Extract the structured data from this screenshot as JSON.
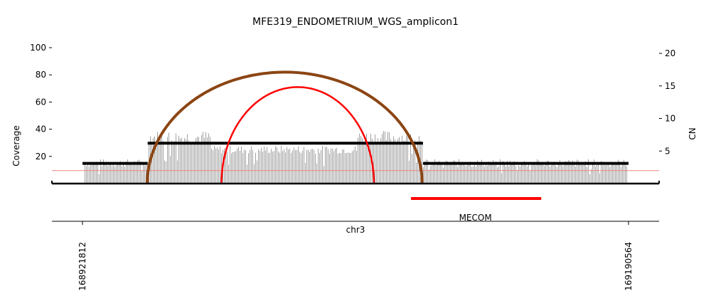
{
  "chart_data": {
    "type": "line",
    "title": "MFE319_ENDOMETRIUM_WGS_amplicon1",
    "xlabel": "chr3",
    "ylabel_left": "Coverage",
    "ylabel_right": "CN",
    "xlim": [
      168921812,
      169190564
    ],
    "x_ticks": [
      "168921812",
      "169190564"
    ],
    "ylim_left": [
      0,
      100
    ],
    "y_ticks_left": [
      20,
      40,
      60,
      80,
      100
    ],
    "ylim_right": [
      0,
      22
    ],
    "y_ticks_right": [
      5,
      10,
      15,
      20
    ],
    "grid": false,
    "cn_threshold": 2,
    "copy_number_segments": [
      {
        "x_start": 168921812,
        "x_end": 168953900,
        "cn": 3.1
      },
      {
        "x_start": 168953900,
        "x_end": 169089400,
        "cn": 6.2
      },
      {
        "x_start": 169089400,
        "x_end": 169190564,
        "cn": 3.1
      }
    ],
    "coverage_sample": {
      "x_start": 168923000,
      "x_end": 169190000,
      "segments": [
        {
          "x_start": 168921812,
          "x_end": 168953900,
          "baseline": 15,
          "vary": 3
        },
        {
          "x_start": 168953900,
          "x_end": 168985000,
          "baseline": 34,
          "vary": 5
        },
        {
          "x_start": 168985000,
          "x_end": 169057000,
          "baseline": 25,
          "vary": 3
        },
        {
          "x_start": 169057000,
          "x_end": 169089400,
          "baseline": 34,
          "vary": 5
        },
        {
          "x_start": 169089400,
          "x_end": 169190564,
          "baseline": 15,
          "vary": 3
        }
      ]
    },
    "breakpoints": [
      {
        "x1": 168953700,
        "x2": 169089000,
        "peak_coverage": 82,
        "color": "#8B4513"
      },
      {
        "x1": 168990200,
        "x2": 169065300,
        "peak_coverage": 71,
        "color": "#FF0000"
      }
    ],
    "genes": [
      {
        "name": "MECOM",
        "x_start": 169083500,
        "x_end": 169147600,
        "color": "#FF0000"
      }
    ]
  }
}
